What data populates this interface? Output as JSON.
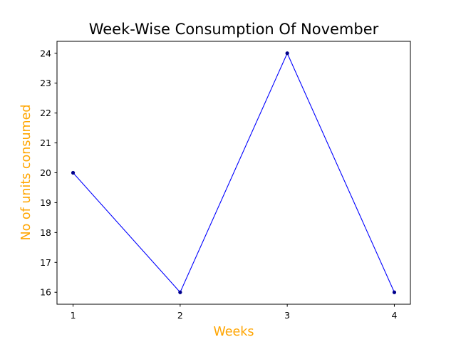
{
  "chart_data": {
    "type": "line",
    "title": "Week-Wise Consumption Of November",
    "xlabel": "Weeks",
    "ylabel": "No of units consumed",
    "x": [
      1,
      2,
      3,
      4
    ],
    "series": [
      {
        "values": [
          20,
          16,
          24,
          16
        ]
      }
    ],
    "xticks": [
      "1",
      "2",
      "3",
      "4"
    ],
    "yticks": [
      "16",
      "17",
      "18",
      "19",
      "20",
      "21",
      "22",
      "23",
      "24"
    ],
    "xlim": [
      0.85,
      4.15
    ],
    "ylim": [
      15.6,
      24.4
    ],
    "grid": false,
    "colors": {
      "line": "#0000ff",
      "marker": "#00008b",
      "axis_label": "#ffa500"
    }
  }
}
